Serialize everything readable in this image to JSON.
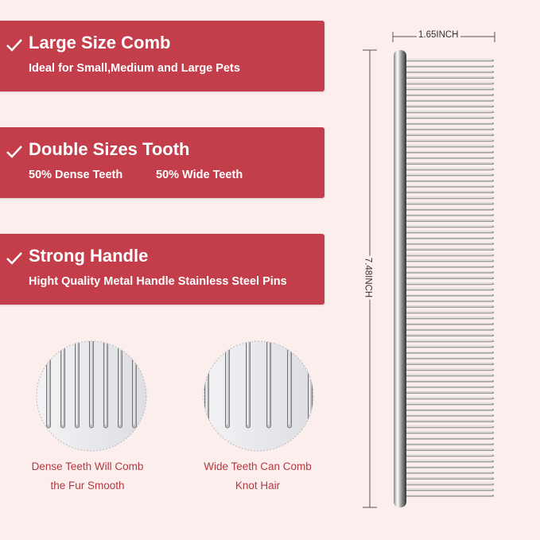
{
  "features": [
    {
      "title": "Large Size Comb",
      "subtitle": "Ideal for Small,Medium and Large Pets"
    },
    {
      "title": "Double Sizes Tooth",
      "subtitle": "50% Dense Teeth",
      "subtitle2": "50% Wide Teeth"
    },
    {
      "title": "Strong Handle",
      "subtitle": "Hight Quality Metal Handle Stainless Steel Pins"
    }
  ],
  "details": [
    {
      "line1": "Dense Teeth Will Comb",
      "line2": "the Fur Smooth"
    },
    {
      "line1": "Wide Teeth Can Comb",
      "line2": "Knot Hair"
    }
  ],
  "dimensions": {
    "width": "1.65INCH",
    "length": "7.48INCH"
  },
  "colors": {
    "banner": "#c43d4a",
    "background": "#fdeeee",
    "caption": "#b23a40"
  }
}
